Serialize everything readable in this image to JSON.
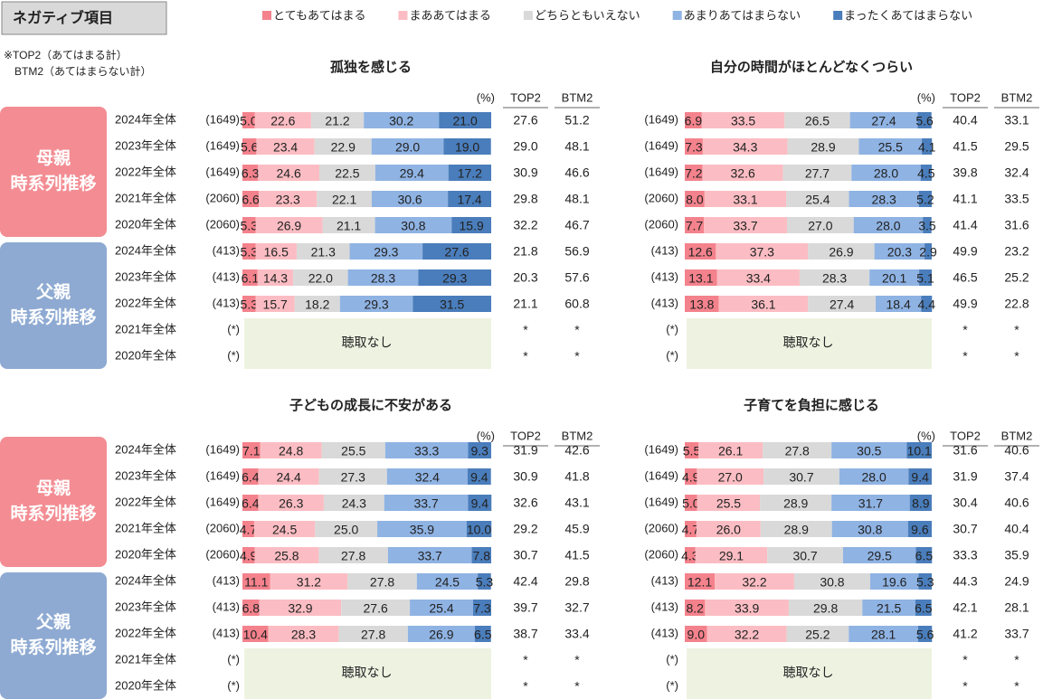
{
  "title": "ネガティブ項目",
  "note": [
    "※TOP2（あてはまる計）",
    "BTM2（あてはまらない計）"
  ],
  "legend": [
    {
      "name": "とてもあてはまる",
      "color": "#f4828c"
    },
    {
      "name": "まああてはまる",
      "color": "#fbbdc3"
    },
    {
      "name": "どちらともいえない",
      "color": "#d9d9d9"
    },
    {
      "name": "あまりあてはまらない",
      "color": "#8fb3e3"
    },
    {
      "name": "まったくあてはまらない",
      "color": "#4a7dbb"
    }
  ],
  "groups": [
    {
      "label": "母親",
      "sub": "時系列推移",
      "color": "#f38d93"
    },
    {
      "label": "父親",
      "sub": "時系列推移",
      "color": "#8eaad2"
    }
  ],
  "row_labels": [
    "2024年全体",
    "2023年全体",
    "2022年全体",
    "2021年全体",
    "2020年全体",
    "2024年全体",
    "2023年全体",
    "2022年全体",
    "2021年全体",
    "2020年全体"
  ],
  "chart_data": [
    {
      "type": "stacked-bar",
      "title": "孤独を感じる",
      "unit": "(%)",
      "columns": [
        "TOP2",
        "BTM2"
      ],
      "no_data_label": "聴取なし",
      "xlim": [
        0,
        100
      ],
      "sample_sizes": [
        "(1649)",
        "(1649)",
        "(1649)",
        "(2060)",
        "(2060)",
        "(413)",
        "(413)",
        "(413)",
        "(*)",
        "(*)"
      ],
      "series": [
        {
          "values": [
            5.0,
            5.6,
            6.3,
            6.6,
            5.3,
            5.3,
            6.1,
            5.3,
            null,
            null
          ],
          "value_labels": [
            "5.0",
            null,
            null,
            null,
            null,
            null,
            null,
            null,
            null,
            null
          ]
        },
        {
          "values": [
            22.6,
            23.4,
            24.6,
            23.3,
            26.9,
            16.5,
            14.3,
            15.7,
            null,
            null
          ]
        },
        {
          "values": [
            21.2,
            22.9,
            22.5,
            22.1,
            21.1,
            21.3,
            22.0,
            18.2,
            null,
            null
          ],
          "value_labels": [
            null,
            null,
            null,
            null,
            null,
            null,
            "22.0",
            null,
            null,
            null
          ]
        },
        {
          "values": [
            30.2,
            29.0,
            29.4,
            30.6,
            30.8,
            29.3,
            28.3,
            29.3,
            null,
            null
          ],
          "value_labels": [
            null,
            "29.0",
            null,
            null,
            null,
            null,
            null,
            null,
            null,
            null
          ]
        },
        {
          "values": [
            21.0,
            19.0,
            17.2,
            17.4,
            15.9,
            27.6,
            29.3,
            31.5,
            null,
            null
          ],
          "value_labels": [
            "21.0",
            "19.0",
            null,
            null,
            null,
            null,
            null,
            null,
            null,
            null
          ]
        }
      ],
      "top2": [
        "27.6",
        "29.0",
        "30.9",
        "29.8",
        "32.2",
        "21.8",
        "20.3",
        "21.1",
        "*",
        "*"
      ],
      "btm2": [
        "51.2",
        "48.1",
        "46.6",
        "48.1",
        "46.7",
        "56.9",
        "57.6",
        "60.8",
        "*",
        "*"
      ]
    },
    {
      "type": "stacked-bar",
      "title": "自分の時間がほとんどなくつらい",
      "unit": "(%)",
      "columns": [
        "TOP2",
        "BTM2"
      ],
      "no_data_label": "聴取なし",
      "xlim": [
        0,
        100
      ],
      "sample_sizes": [
        "(1649)",
        "(1649)",
        "(1649)",
        "(2060)",
        "(2060)",
        "(413)",
        "(413)",
        "(413)",
        "(*)",
        "(*)"
      ],
      "series": [
        {
          "values": [
            6.9,
            7.3,
            7.2,
            8.0,
            7.7,
            12.6,
            13.1,
            13.8,
            null,
            null
          ],
          "value_labels": [
            null,
            null,
            null,
            "8.0",
            null,
            null,
            null,
            null,
            null,
            null
          ]
        },
        {
          "values": [
            33.5,
            34.3,
            32.6,
            33.1,
            33.7,
            37.3,
            33.4,
            36.1,
            null,
            null
          ]
        },
        {
          "values": [
            26.5,
            28.9,
            27.7,
            25.4,
            27.0,
            26.9,
            28.3,
            27.4,
            null,
            null
          ],
          "value_labels": [
            null,
            null,
            null,
            null,
            "27.0",
            null,
            null,
            null,
            null,
            null
          ]
        },
        {
          "values": [
            27.4,
            25.5,
            28.0,
            28.3,
            28.0,
            20.3,
            20.1,
            18.4,
            null,
            null
          ],
          "value_labels": [
            null,
            null,
            "28.0",
            null,
            "28.0",
            null,
            null,
            null,
            null,
            null
          ]
        },
        {
          "values": [
            5.6,
            4.1,
            4.5,
            5.2,
            3.5,
            2.9,
            5.1,
            4.4,
            null,
            null
          ]
        }
      ],
      "top2": [
        "40.4",
        "41.5",
        "39.8",
        "41.1",
        "41.4",
        "49.9",
        "46.5",
        "49.9",
        "*",
        "*"
      ],
      "btm2": [
        "33.1",
        "29.5",
        "32.4",
        "33.5",
        "31.6",
        "23.2",
        "25.2",
        "22.8",
        "*",
        "*"
      ]
    },
    {
      "type": "stacked-bar",
      "title": "子どもの成長に不安がある",
      "unit": "(%)",
      "columns": [
        "TOP2",
        "BTM2"
      ],
      "no_data_label": "聴取なし",
      "xlim": [
        0,
        100
      ],
      "sample_sizes": [
        "(1649)",
        "(1649)",
        "(1649)",
        "(2060)",
        "(2060)",
        "(413)",
        "(413)",
        "(413)",
        "(*)",
        "(*)"
      ],
      "series": [
        {
          "values": [
            7.1,
            6.4,
            6.4,
            4.7,
            4.9,
            11.1,
            6.8,
            10.4,
            null,
            null
          ]
        },
        {
          "values": [
            24.8,
            24.4,
            26.3,
            24.5,
            25.8,
            31.2,
            32.9,
            28.3,
            null,
            null
          ]
        },
        {
          "values": [
            25.5,
            27.3,
            24.3,
            25.0,
            27.8,
            27.8,
            27.6,
            27.8,
            null,
            null
          ],
          "value_labels": [
            null,
            null,
            null,
            "25.0",
            null,
            null,
            null,
            null,
            null,
            null
          ]
        },
        {
          "values": [
            33.3,
            32.4,
            33.7,
            35.9,
            33.7,
            24.5,
            25.4,
            26.9,
            null,
            null
          ]
        },
        {
          "values": [
            9.3,
            9.4,
            9.4,
            10.0,
            7.8,
            5.3,
            7.3,
            6.5,
            null,
            null
          ],
          "value_labels": [
            null,
            null,
            null,
            "10.0",
            null,
            null,
            null,
            null,
            null,
            null
          ]
        }
      ],
      "top2": [
        "31.9",
        "30.9",
        "32.6",
        "29.2",
        "30.7",
        "42.4",
        "39.7",
        "38.7",
        "*",
        "*"
      ],
      "btm2": [
        "42.6",
        "41.8",
        "43.1",
        "45.9",
        "41.5",
        "29.8",
        "32.7",
        "33.4",
        "*",
        "*"
      ]
    },
    {
      "type": "stacked-bar",
      "title": "子育てを負担に感じる",
      "unit": "(%)",
      "columns": [
        "TOP2",
        "BTM2"
      ],
      "no_data_label": "聴取なし",
      "xlim": [
        0,
        100
      ],
      "sample_sizes": [
        "(1649)",
        "(1649)",
        "(1649)",
        "(2060)",
        "(2060)",
        "(413)",
        "(413)",
        "(413)",
        "(*)",
        "(*)"
      ],
      "series": [
        {
          "values": [
            5.5,
            4.9,
            5.0,
            4.7,
            4.3,
            12.1,
            8.2,
            9.0,
            null,
            null
          ],
          "value_labels": [
            null,
            null,
            "5.0",
            null,
            null,
            null,
            null,
            "9.0",
            null,
            null
          ]
        },
        {
          "values": [
            26.1,
            27.0,
            25.5,
            26.0,
            29.1,
            32.2,
            33.9,
            32.2,
            null,
            null
          ],
          "value_labels": [
            null,
            "27.0",
            null,
            "26.0",
            null,
            null,
            null,
            null,
            null,
            null
          ]
        },
        {
          "values": [
            27.8,
            30.7,
            28.9,
            28.9,
            30.7,
            30.8,
            29.8,
            25.2,
            null,
            null
          ]
        },
        {
          "values": [
            30.5,
            28.0,
            31.7,
            30.8,
            29.5,
            19.6,
            21.5,
            28.1,
            null,
            null
          ],
          "value_labels": [
            null,
            "28.0",
            null,
            null,
            null,
            null,
            null,
            null,
            null,
            null
          ]
        },
        {
          "values": [
            10.1,
            9.4,
            8.9,
            9.6,
            6.5,
            5.3,
            6.5,
            5.6,
            null,
            null
          ]
        }
      ],
      "top2": [
        "31.6",
        "31.9",
        "30.4",
        "30.7",
        "33.3",
        "44.3",
        "42.1",
        "41.2",
        "*",
        "*"
      ],
      "btm2": [
        "40.6",
        "37.4",
        "40.6",
        "40.4",
        "35.9",
        "24.9",
        "28.1",
        "33.7",
        "*",
        "*"
      ]
    }
  ]
}
